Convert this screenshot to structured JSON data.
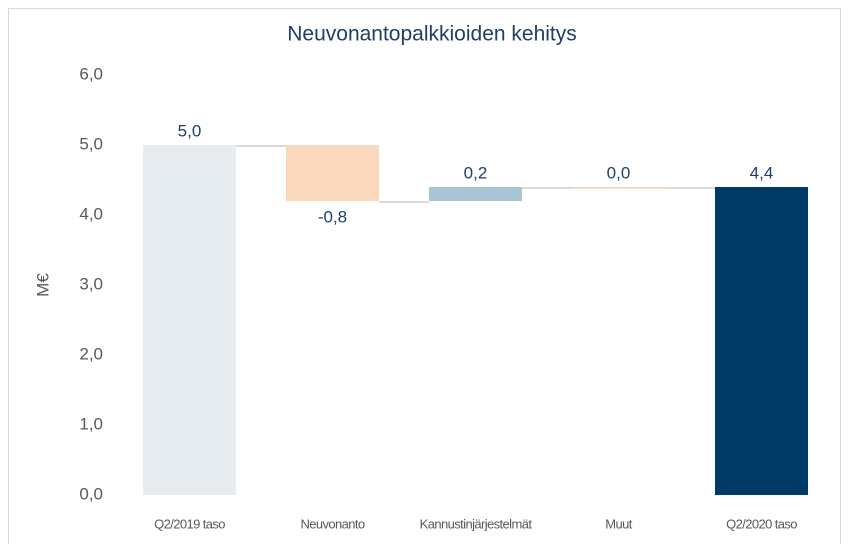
{
  "chart_data": {
    "type": "waterfall",
    "title": "Neuvonantopalkkioiden kehitys",
    "y_label": "M€",
    "categories": [
      "Q2/2019 taso",
      "Neuvonanto",
      "Kannustinjärjestelmät",
      "Muut",
      "Q2/2020 taso"
    ],
    "values": [
      5.0,
      -0.8,
      0.2,
      0.0,
      4.4
    ],
    "value_labels": [
      "5,0",
      "-0,8",
      "0,2",
      "0,0",
      "4,4"
    ],
    "colors": [
      "#e6ecf0",
      "#fad8bb",
      "#a9c4d5",
      "#f5cfb0",
      "#003a66"
    ],
    "ylim": [
      0,
      6
    ],
    "yticks": [
      {
        "value": 0,
        "label": "0,0"
      },
      {
        "value": 1,
        "label": "1,0"
      },
      {
        "value": 2,
        "label": "2,0"
      },
      {
        "value": 3,
        "label": "3,0"
      },
      {
        "value": 4,
        "label": "4,0"
      },
      {
        "value": 5,
        "label": "5,0"
      },
      {
        "value": 6,
        "label": "6,0"
      }
    ],
    "grid": false
  }
}
